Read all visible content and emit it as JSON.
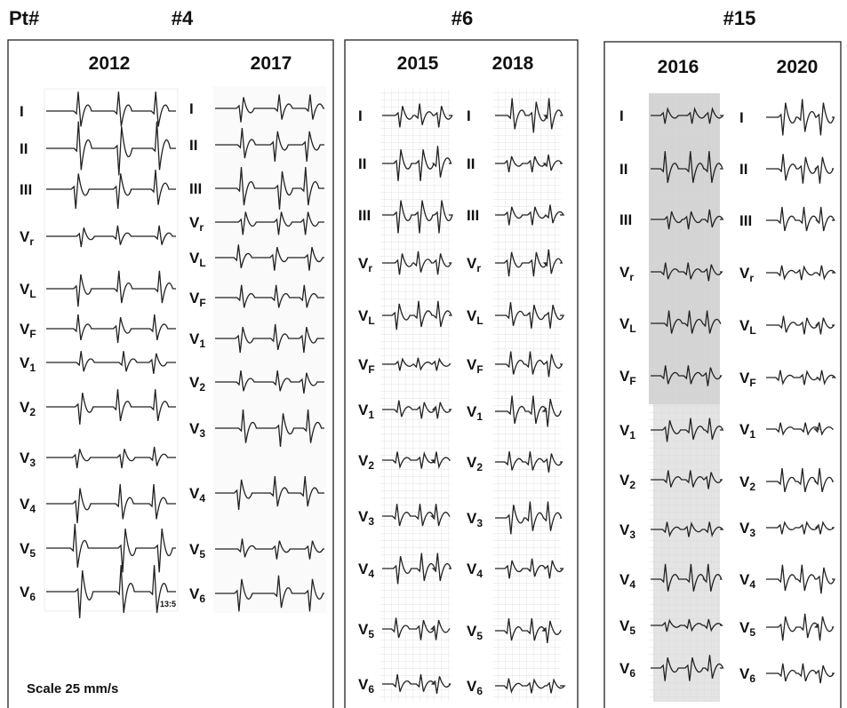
{
  "header": {
    "pt_label": "Pt#"
  },
  "patients": [
    {
      "id": "#4",
      "recordings": [
        {
          "year": "2012",
          "timestamp": "13:5"
        },
        {
          "year": "2017"
        }
      ]
    },
    {
      "id": "#6",
      "recordings": [
        {
          "year": "2015"
        },
        {
          "year": "2018"
        }
      ]
    },
    {
      "id": "#15",
      "recordings": [
        {
          "year": "2016"
        },
        {
          "year": "2020"
        }
      ]
    }
  ],
  "leads": [
    {
      "letter": "I"
    },
    {
      "letter": "II"
    },
    {
      "letter": "III"
    },
    {
      "letter": "V",
      "sub": "r"
    },
    {
      "letter": "V",
      "sub": "L"
    },
    {
      "letter": "V",
      "sub": "F"
    },
    {
      "letter": "V",
      "sub": "1"
    },
    {
      "letter": "V",
      "sub": "2"
    },
    {
      "letter": "V",
      "sub": "3"
    },
    {
      "letter": "V",
      "sub": "4"
    },
    {
      "letter": "V",
      "sub": "5"
    },
    {
      "letter": "V",
      "sub": "6"
    }
  ],
  "scale_note": "Scale 25 mm/s"
}
